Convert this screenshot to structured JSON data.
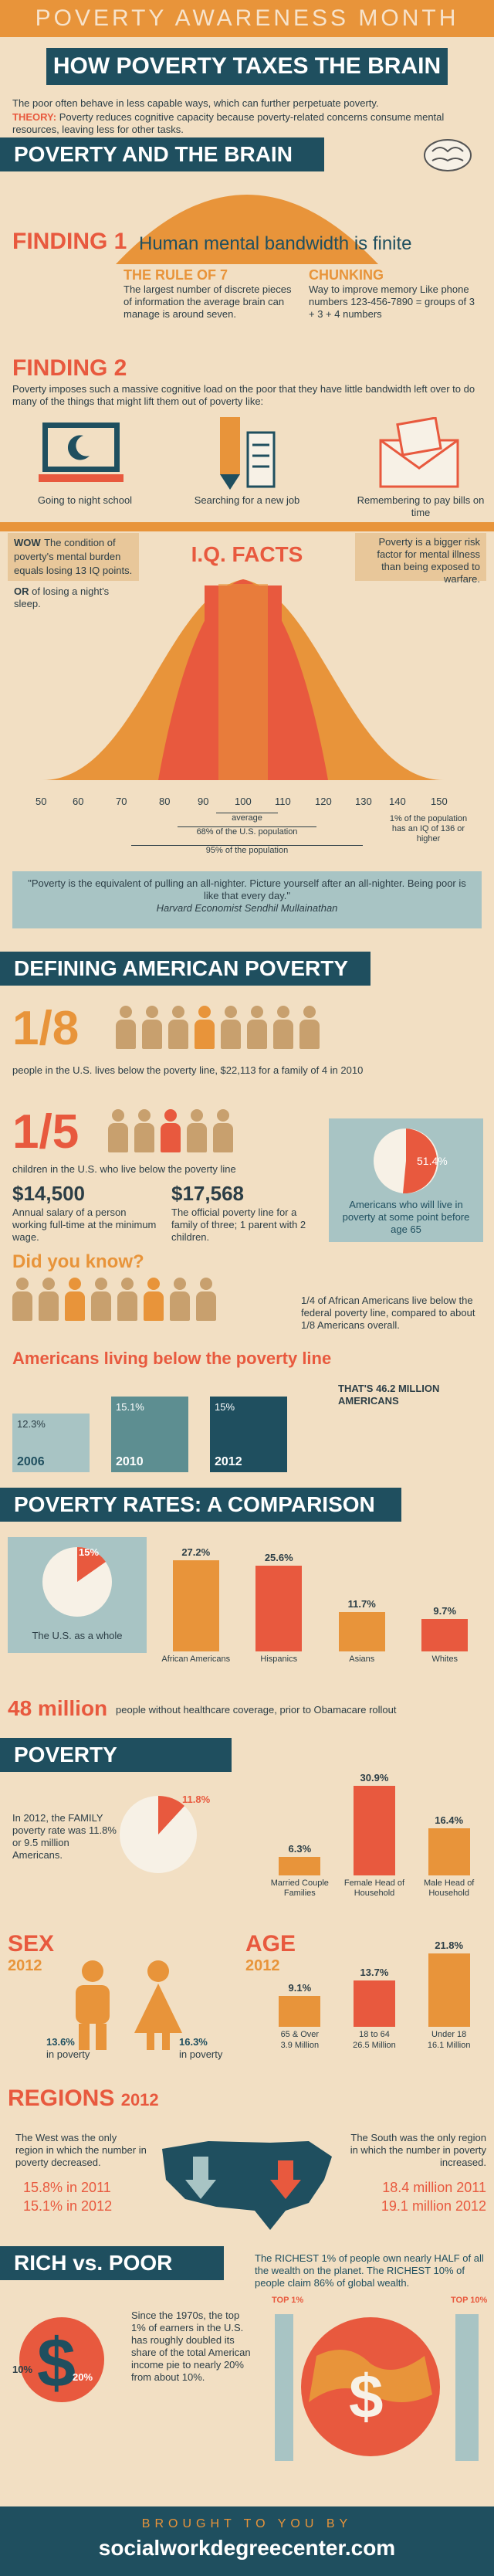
{
  "header": {
    "top": "POVERTY AWARENESS MONTH",
    "title": "HOW POVERTY TAXES THE BRAIN"
  },
  "intro": {
    "line1": "The poor often behave in less capable ways, which can further perpetuate poverty.",
    "theory_label": "THEORY:",
    "theory_text": "Poverty reduces cognitive capacity because poverty-related concerns consume mental resources, leaving less for other tasks."
  },
  "brain_section": {
    "title": "POVERTY AND THE BRAIN",
    "finding1": "FINDING 1",
    "finding1_text": "Human mental bandwidth is finite",
    "rule_title": "THE RULE OF 7",
    "rule_text": "The largest number of discrete pieces of information the average brain can manage is around seven.",
    "chunk_title": "CHUNKING",
    "chunk_text": "Way to improve memory Like phone numbers 123-456-7890 = groups of 3 + 3 + 4 numbers",
    "finding2": "FINDING 2",
    "finding2_text": "Poverty imposes such a massive cognitive load on the poor that they have little bandwidth left over to do many of the things that might lift them out of poverty like:",
    "icons": [
      "Going to night school",
      "Searching  for a new job",
      "Remembering to pay bills on time"
    ],
    "wow_label": "WOW",
    "wow_text": "The condition of poverty's mental burden equals losing 13 IQ points.",
    "or_label": "OR",
    "or_text": "of losing a night's sleep.",
    "iq_title": "I.Q. FACTS",
    "risk_text": "Poverty is a bigger risk factor for mental illness than being exposed to warfare.",
    "iq_ticks": [
      "50",
      "60",
      "70",
      "80",
      "90",
      "100",
      "110",
      "120",
      "130",
      "140",
      "150"
    ],
    "iq_average": "average",
    "iq_68": "68% of the U.S. population",
    "iq_95": "95% of the population",
    "iq_1": "1% of the population has an IQ of 136 or higher",
    "quote": "\"Poverty is the equivalent of pulling an all-nighter. Picture yourself after an all-nighter. Being poor is like that every day.\"",
    "quote_by": "Harvard Economist Sendhil Mullainathan"
  },
  "defining": {
    "title": "DEFINING AMERICAN POVERTY",
    "frac1": "1/8",
    "frac1_text": "people in the U.S. lives below the poverty line, $22,113 for a family of 4 in 2010",
    "frac2": "1/5",
    "frac2_text": "children in the U.S. who live below the poverty line",
    "pie_value": "51.4%",
    "pie_text": "Americans who will live in poverty at some point before age 65",
    "salary": "$14,500",
    "salary_text": "Annual salary of a person working full-time at the minimum wage.",
    "line_value": "$17,568",
    "line_text": "The official poverty line for a family of three; 1 parent with 2 children.",
    "did_you_know": "Did you know?",
    "dyk_text": "1/4 of African Americans live below the federal poverty line, compared to about 1/8 Americans overall.",
    "living_title": "Americans living below the poverty line",
    "years": [
      {
        "year": "2006",
        "value": "12.3%"
      },
      {
        "year": "2010",
        "value": "15.1%"
      },
      {
        "year": "2012",
        "value": "15%"
      }
    ],
    "total": "THAT'S 46.2 MILLION AMERICANS"
  },
  "comparison": {
    "title": "POVERTY RATES: A COMPARISON",
    "us_value": "15%",
    "us_label": "The U.S. as a whole",
    "bars": [
      {
        "label": "African Americans",
        "value": "27.2%"
      },
      {
        "label": "Hispanics",
        "value": "25.6%"
      },
      {
        "label": "Asians",
        "value": "11.7%"
      },
      {
        "label": "Whites",
        "value": "9.7%"
      }
    ],
    "uninsured": "48 million",
    "uninsured_text": "people without healthcare coverage, prior to Obamacare rollout"
  },
  "poverty": {
    "title": "POVERTY",
    "family_text": "In 2012, the FAMILY poverty rate was 11.8% or 9.5 million Americans.",
    "family_pie": "11.8%",
    "bars": [
      {
        "label": "Married Couple Families",
        "value": "6.3%"
      },
      {
        "label": "Female Head of Household",
        "value": "30.9%"
      },
      {
        "label": "Male Head of Household",
        "value": "16.4%"
      }
    ],
    "sex_title": "SEX",
    "sex_year": "2012",
    "male_value": "13.6%",
    "female_value": "16.3%",
    "in_poverty": "in poverty",
    "age_title": "AGE",
    "age_year": "2012",
    "ages": [
      {
        "label": "65 & Over",
        "sub": "3.9 Million",
        "value": "9.1%"
      },
      {
        "label": "18 to 64",
        "sub": "26.5 Million",
        "value": "13.7%"
      },
      {
        "label": "Under 18",
        "sub": "16.1 Million",
        "value": "21.8%"
      }
    ],
    "regions_title": "REGIONS",
    "regions_year": "2012",
    "west_text": "The West was the only region in which the number in poverty decreased.",
    "west_2011": "15.8% in 2011",
    "west_2012": "15.1% in 2012",
    "south_text": "The South was the only region in which the number in poverty increased.",
    "south_2011": "18.4 million 2011",
    "south_2012": "19.1 million 2012"
  },
  "rich": {
    "title": "RICH vs. POOR",
    "richest_text": "The RICHEST 1% of people own nearly HALF of all the wealth on the planet. The RICHEST 10% of people claim 86% of global wealth.",
    "pct10": "10%",
    "pct20": "20%",
    "since_text": "Since the 1970s, the top 1% of earners in the U.S. has roughly doubled its share of the total American income pie to nearly 20% from about 10%.",
    "top1": "TOP 1%",
    "top10": "TOP 10%"
  },
  "footer": {
    "brought": "BROUGHT TO YOU BY",
    "site": "socialworkdegreecenter.com"
  }
}
